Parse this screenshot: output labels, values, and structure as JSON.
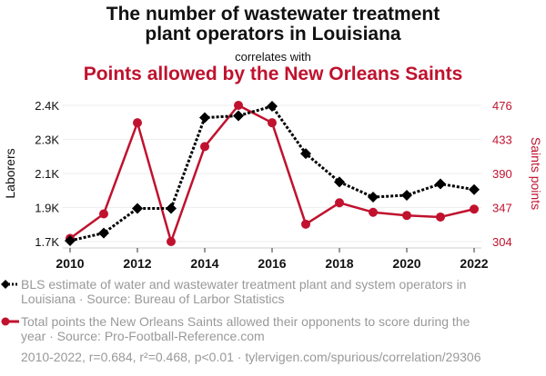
{
  "header": {
    "title_line1": "The number of wastewater treatment",
    "title_line2": "plant operators in Louisiana",
    "subtitle": "correlates with",
    "title2": "Points allowed by the New Orleans Saints"
  },
  "colors": {
    "series1": "#000000",
    "series2": "#c0122e",
    "grid": "#eeeeee",
    "muted": "#999999"
  },
  "legend": [
    {
      "label": "BLS estimate of water and wastewater treatment plant and system operators in",
      "label2": "Louisiana · Source: Bureau of Larbor Statistics"
    },
    {
      "label": "Total points the New Orleans Saints allowed their opponents to score during the",
      "label2": "year · Source: Pro-Football-Reference.com"
    }
  ],
  "footer": "2010-2022, r=0.684, r²=0.468, p<0.01 · tylervigen.com/spurious/correlation/29306",
  "chart_data": {
    "type": "line",
    "x": [
      2010,
      2011,
      2012,
      2013,
      2014,
      2015,
      2016,
      2017,
      2018,
      2019,
      2020,
      2021,
      2022
    ],
    "x_ticks": [
      "2010",
      "2012",
      "2014",
      "2016",
      "2018",
      "2020",
      "2022"
    ],
    "x_tick_values": [
      2010,
      2012,
      2014,
      2016,
      2018,
      2020,
      2022
    ],
    "series": [
      {
        "name": "BLS estimate of water and wastewater treatment plant and system operators in Louisiana",
        "axis": "left",
        "style": "dotted-diamond",
        "values": [
          1720,
          1760,
          1890,
          1890,
          2370,
          2380,
          2430,
          2180,
          2030,
          1950,
          1960,
          2020,
          1990
        ]
      },
      {
        "name": "Total points the New Orleans Saints allowed their opponents to score during the year",
        "axis": "right",
        "style": "solid-circle",
        "values": [
          308,
          339,
          454,
          304,
          424,
          476,
          454,
          326,
          353,
          341,
          337,
          335,
          345
        ]
      }
    ],
    "left_axis": {
      "label": "Laborers",
      "ticks": [
        "1.7K",
        "1.9K",
        "2.1K",
        "2.3K",
        "2.4K"
      ],
      "range": [
        1715,
        2435
      ]
    },
    "right_axis": {
      "label": "Saints points",
      "ticks": [
        "304",
        "347",
        "390",
        "433",
        "476"
      ],
      "range": [
        304,
        476
      ]
    },
    "xlim": [
      2010,
      2022
    ],
    "grid": true,
    "legend_position": "bottom"
  }
}
